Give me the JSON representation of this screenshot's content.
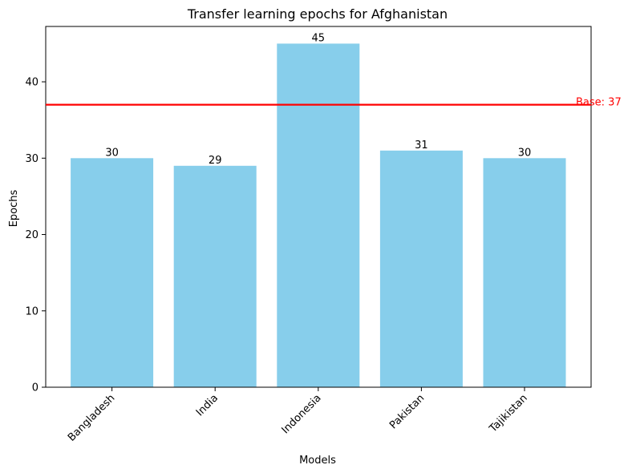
{
  "chart_data": {
    "type": "bar",
    "title": "Transfer learning epochs for Afghanistan",
    "xlabel": "Models",
    "ylabel": "Epochs",
    "categories": [
      "Bangladesh",
      "India",
      "Indonesia",
      "Pakistan",
      "Tajikistan"
    ],
    "values": [
      30,
      29,
      45,
      31,
      30
    ],
    "data_labels": [
      "30",
      "29",
      "45",
      "31",
      "30"
    ],
    "ylim": [
      0,
      47.25
    ],
    "yticks": [
      0,
      10,
      20,
      30,
      40
    ],
    "ytick_labels": [
      "0",
      "10",
      "20",
      "30",
      "40"
    ],
    "reference_line": {
      "value": 37,
      "label": "Base: 37",
      "color": "#ff0000"
    },
    "bar_color": "#87ceeb",
    "grid": false,
    "legend": "none"
  }
}
